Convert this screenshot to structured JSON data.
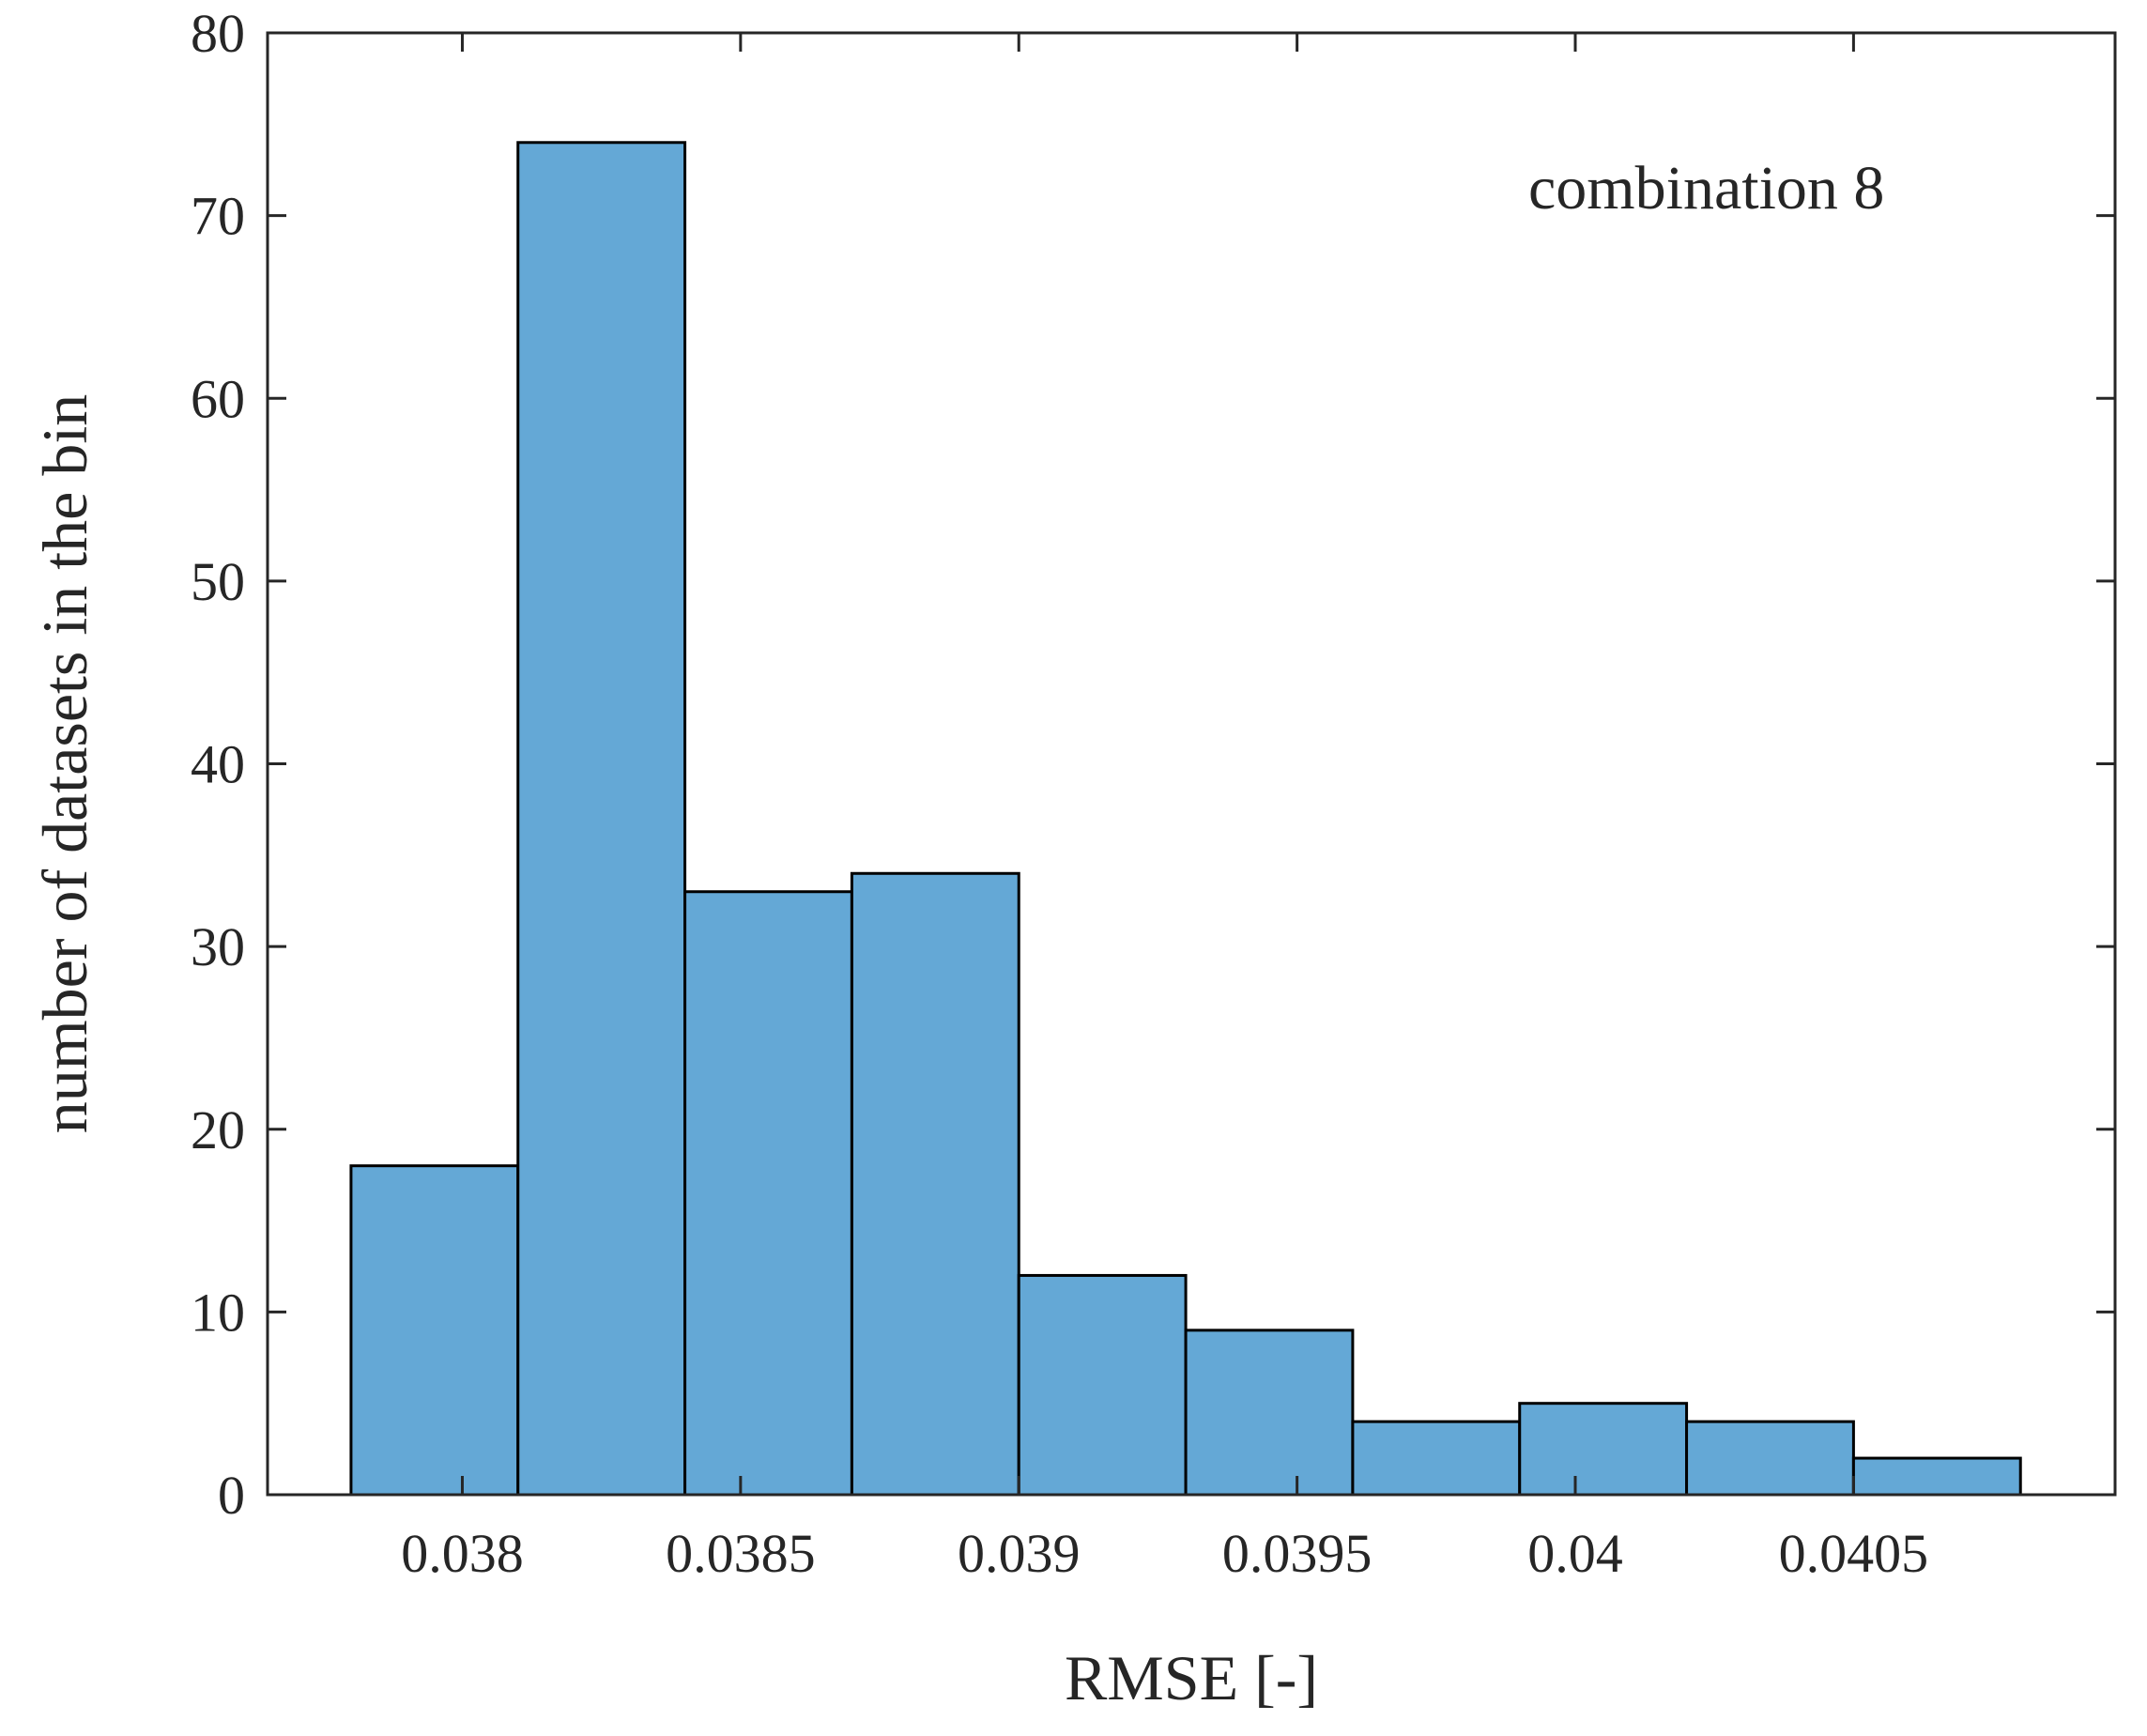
{
  "chart_data": {
    "type": "bar",
    "subtype": "histogram",
    "annotation": "combination 8",
    "xlabel": "RMSE [-]",
    "ylabel": "number of datasets in the bin",
    "xlim": [
      0.03765,
      0.04097
    ],
    "ylim": [
      0,
      80
    ],
    "xticks": [
      0.038,
      0.0385,
      0.039,
      0.0395,
      0.04,
      0.0405
    ],
    "xtick_labels": [
      "0.038",
      "0.0385",
      "0.039",
      "0.0395",
      "0.04",
      "0.0405"
    ],
    "yticks": [
      0,
      10,
      20,
      30,
      40,
      50,
      60,
      70,
      80
    ],
    "ytick_labels": [
      "0",
      "10",
      "20",
      "30",
      "40",
      "50",
      "60",
      "70",
      "80"
    ],
    "bin_edges": [
      0.0378,
      0.0381,
      0.0384,
      0.0387,
      0.039,
      0.0393,
      0.0396,
      0.0399,
      0.0402,
      0.0405,
      0.0408
    ],
    "counts": [
      18,
      74,
      33,
      34,
      12,
      9,
      4,
      5,
      4,
      2
    ],
    "bar_color": "#64a8d6",
    "edge_color": "#000000",
    "grid": false,
    "box": true
  }
}
